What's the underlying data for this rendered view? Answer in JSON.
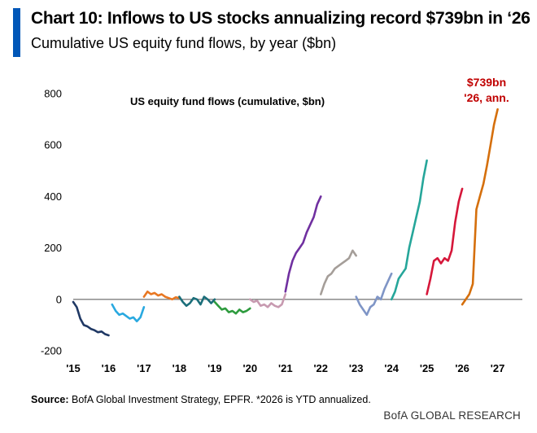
{
  "header": {
    "title": "Chart 10: Inflows to US stocks annualizing record $739bn in ‘26",
    "subtitle": "Cumulative US equity fund flows, by year ($bn)",
    "accent_color": "#0057b8"
  },
  "footer": {
    "source_label": "Source:",
    "source_text": " BofA Global Investment Strategy, EPFR. *2026 is YTD annualized.",
    "brand": "BofA GLOBAL RESEARCH"
  },
  "chart_data": {
    "type": "line",
    "title": "US equity fund flows (cumulative, $bn)",
    "xlabel": "",
    "ylabel": "",
    "xlim": [
      2015,
      2027.7
    ],
    "ylim": [
      -200,
      800
    ],
    "yticks": [
      -200,
      0,
      200,
      400,
      600,
      800
    ],
    "ytick_labels": [
      "-200",
      "0",
      "200",
      "400",
      "600",
      "800"
    ],
    "xticks": [
      2015,
      2016,
      2017,
      2018,
      2019,
      2020,
      2021,
      2022,
      2023,
      2024,
      2025,
      2026,
      2027
    ],
    "xtick_labels": [
      "'15",
      "'16",
      "'17",
      "'18",
      "'19",
      "'20",
      "'21",
      "'22",
      "'23",
      "'24",
      "'25",
      "'26",
      "'27"
    ],
    "grid": false,
    "legend": "none",
    "annotation": {
      "line1": "$739bn",
      "line2": "'26, ann.",
      "color": "#c00000"
    },
    "series": [
      {
        "year": 2015,
        "color": "#1f3864",
        "x": [
          2015.0,
          2015.1,
          2015.2,
          2015.3,
          2015.4,
          2015.5,
          2015.6,
          2015.7,
          2015.8,
          2015.9,
          2016.0
        ],
        "y": [
          -10,
          -30,
          -75,
          -100,
          -105,
          -115,
          -120,
          -128,
          -125,
          -135,
          -140
        ]
      },
      {
        "year": 2016,
        "color": "#29a9e0",
        "x": [
          2016.1,
          2016.2,
          2016.3,
          2016.4,
          2016.5,
          2016.6,
          2016.7,
          2016.8,
          2016.9,
          2017.0
        ],
        "y": [
          -20,
          -45,
          -60,
          -55,
          -65,
          -75,
          -70,
          -85,
          -70,
          -30
        ]
      },
      {
        "year": 2017,
        "color": "#e87722",
        "x": [
          2017.0,
          2017.1,
          2017.2,
          2017.3,
          2017.4,
          2017.5,
          2017.6,
          2017.7,
          2017.8,
          2017.9,
          2018.0
        ],
        "y": [
          10,
          30,
          20,
          25,
          15,
          20,
          10,
          5,
          0,
          8,
          5
        ]
      },
      {
        "year": 2018,
        "color": "#1b6e7a",
        "x": [
          2018.0,
          2018.1,
          2018.2,
          2018.3,
          2018.4,
          2018.5,
          2018.6,
          2018.7,
          2018.8,
          2018.9,
          2019.0
        ],
        "y": [
          10,
          -10,
          -25,
          -15,
          5,
          0,
          -20,
          10,
          0,
          -15,
          0
        ]
      },
      {
        "year": 2019,
        "color": "#2e9b3e",
        "x": [
          2019.0,
          2019.1,
          2019.2,
          2019.3,
          2019.4,
          2019.5,
          2019.6,
          2019.7,
          2019.8,
          2019.9,
          2020.0
        ],
        "y": [
          -10,
          -25,
          -40,
          -35,
          -50,
          -45,
          -55,
          -40,
          -50,
          -45,
          -35
        ]
      },
      {
        "year": 2020,
        "color": "#c79ab0",
        "x": [
          2020.0,
          2020.1,
          2020.2,
          2020.3,
          2020.4,
          2020.5,
          2020.6,
          2020.7,
          2020.8,
          2020.9,
          2021.0
        ],
        "y": [
          0,
          -10,
          -5,
          -25,
          -20,
          -30,
          -15,
          -25,
          -30,
          -20,
          20
        ]
      },
      {
        "year": 2021,
        "color": "#7030a0",
        "x": [
          2021.0,
          2021.1,
          2021.2,
          2021.3,
          2021.4,
          2021.5,
          2021.6,
          2021.7,
          2021.8,
          2021.9,
          2022.0
        ],
        "y": [
          30,
          100,
          150,
          180,
          200,
          220,
          260,
          290,
          320,
          370,
          400
        ]
      },
      {
        "year": 2022,
        "color": "#a59e99",
        "x": [
          2022.0,
          2022.1,
          2022.2,
          2022.3,
          2022.4,
          2022.5,
          2022.6,
          2022.7,
          2022.8,
          2022.9,
          2023.0
        ],
        "y": [
          20,
          60,
          90,
          100,
          120,
          130,
          140,
          150,
          160,
          190,
          170
        ]
      },
      {
        "year": 2023,
        "color": "#7f95c6",
        "x": [
          2023.0,
          2023.1,
          2023.2,
          2023.3,
          2023.4,
          2023.5,
          2023.6,
          2023.7,
          2023.8,
          2023.9,
          2024.0
        ],
        "y": [
          10,
          -20,
          -40,
          -60,
          -30,
          -20,
          10,
          0,
          40,
          70,
          100
        ]
      },
      {
        "year": 2024,
        "color": "#26a69a",
        "x": [
          2024.0,
          2024.1,
          2024.2,
          2024.3,
          2024.4,
          2024.5,
          2024.6,
          2024.7,
          2024.8,
          2024.9,
          2025.0
        ],
        "y": [
          0,
          30,
          80,
          100,
          120,
          200,
          260,
          320,
          380,
          470,
          540
        ]
      },
      {
        "year": 2025,
        "color": "#d6173a",
        "x": [
          2025.0,
          2025.1,
          2025.2,
          2025.3,
          2025.4,
          2025.5,
          2025.6,
          2025.7,
          2025.8,
          2025.9,
          2026.0
        ],
        "y": [
          20,
          80,
          150,
          160,
          140,
          160,
          150,
          190,
          300,
          380,
          430
        ]
      },
      {
        "year": 2026,
        "color": "#d56f0c",
        "x": [
          2026.0,
          2026.1,
          2026.2,
          2026.3,
          2026.4,
          2026.5,
          2026.6,
          2026.7,
          2026.8,
          2026.9,
          2027.0
        ],
        "y": [
          -20,
          0,
          20,
          60,
          350,
          400,
          450,
          520,
          600,
          680,
          739
        ]
      }
    ]
  }
}
